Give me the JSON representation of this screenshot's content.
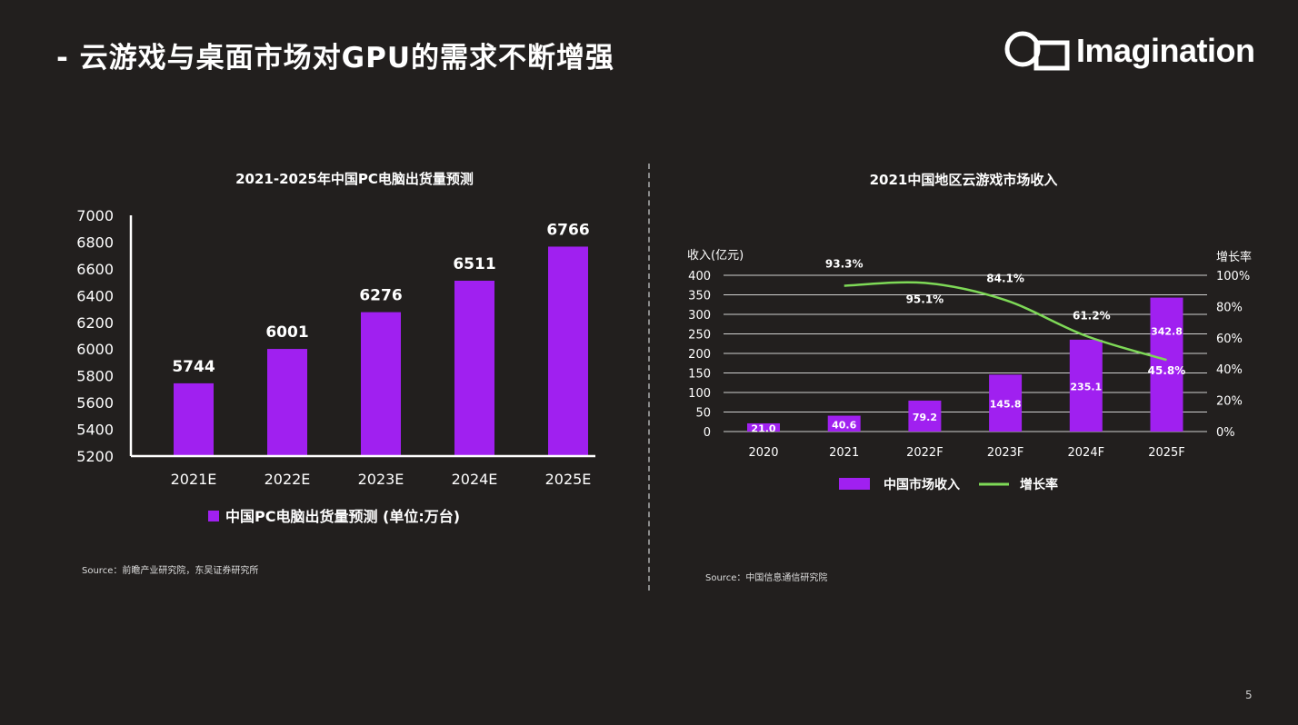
{
  "slide": {
    "title": "- 云游戏与桌面市场对GPU的需求不断增强",
    "logo_text": "Imagination",
    "page_number": "5"
  },
  "colors": {
    "background": "#221f1e",
    "bar": "#a020f0",
    "line": "#7ed957",
    "axis": "#ffffff",
    "grid": "#d0d0d0"
  },
  "chart_data": [
    {
      "type": "bar",
      "title": "2021-2025年中国PC电脑出货量预测",
      "categories": [
        "2021E",
        "2022E",
        "2023E",
        "2024E",
        "2025E"
      ],
      "series": [
        {
          "name": "中国PC电脑出货量预测 (单位:万台)",
          "values": [
            5744,
            6001,
            6276,
            6511,
            6766
          ]
        }
      ],
      "ylim": [
        5200,
        7000
      ],
      "yticks": [
        5200,
        5400,
        5600,
        5800,
        6000,
        6200,
        6400,
        6600,
        6800,
        7000
      ],
      "grid": false,
      "legend_position": "bottom",
      "source": "Source：前瞻产业研究院，东吴证券研究所"
    },
    {
      "type": "bar",
      "title": "2021中国地区云游戏市场收入",
      "categories": [
        "2020",
        "2021",
        "2022F",
        "2023F",
        "2024F",
        "2025F"
      ],
      "series": [
        {
          "name": "中国市场收入",
          "type": "bar",
          "axis": "left",
          "values": [
            21.0,
            40.6,
            79.2,
            145.8,
            235.1,
            342.8
          ]
        },
        {
          "name": "增长率",
          "type": "line",
          "axis": "right",
          "values": [
            null,
            93.3,
            95.1,
            84.1,
            61.2,
            45.8
          ]
        }
      ],
      "ylabel": "收入(亿元)",
      "y2label": "增长率",
      "ylim": [
        0,
        400
      ],
      "yticks": [
        0,
        50,
        100,
        150,
        200,
        250,
        300,
        350,
        400
      ],
      "y2lim": [
        0,
        100
      ],
      "y2ticks": [
        "0%",
        "20%",
        "40%",
        "60%",
        "80%",
        "100%"
      ],
      "value_labels": [
        "21.0",
        "40.6",
        "79.2",
        "145.8",
        "235.1",
        "342.8"
      ],
      "rate_labels": [
        "93.3%",
        "95.1%",
        "84.1%",
        "61.2%",
        "45.8%"
      ],
      "grid": true,
      "legend_position": "bottom",
      "source": "Source：中国信息通信研究院"
    }
  ]
}
